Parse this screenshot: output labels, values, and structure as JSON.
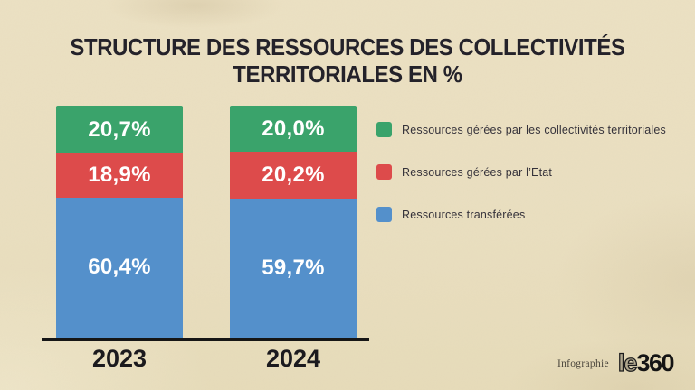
{
  "title": {
    "line1": "STRUCTURE DES RESSOURCES DES COLLECTIVITÉS",
    "line2": "TERRITORIALES EN %"
  },
  "chart_data": {
    "type": "bar",
    "stacked": true,
    "unit": "%",
    "categories": [
      "2023",
      "2024"
    ],
    "series": [
      {
        "name": "Ressources gérées par les collectivités territoriales",
        "key": "collectivites-territoriales",
        "color": "#3aa36b",
        "values": [
          20.7,
          20.0
        ]
      },
      {
        "name": "Ressources gérées par l’Etat",
        "key": "etat",
        "color": "#dd4b4b",
        "values": [
          18.9,
          20.2
        ]
      },
      {
        "name": "Ressources transférées",
        "key": "transferees",
        "color": "#5490cb",
        "values": [
          60.4,
          59.7
        ]
      }
    ],
    "value_labels": [
      [
        "20,7%",
        "20,0%"
      ],
      [
        "18,9%",
        "20,2%"
      ],
      [
        "60,4%",
        "59,7%"
      ]
    ],
    "legend_position": "right",
    "ylim": [
      0,
      100
    ],
    "grid": false
  },
  "footer": {
    "credit": "Infographie",
    "brand_light": "le",
    "brand_bold": "360"
  }
}
